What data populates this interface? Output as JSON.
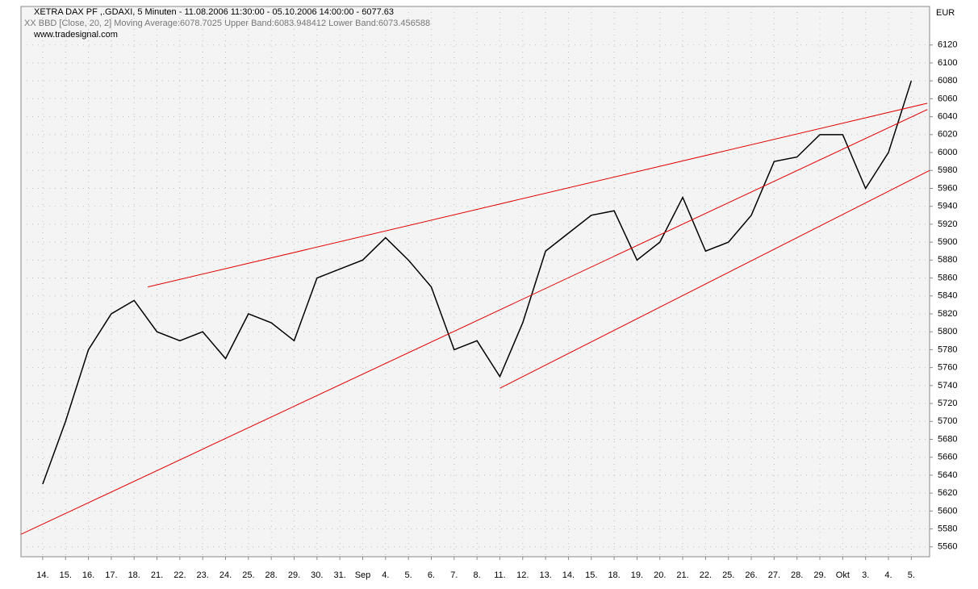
{
  "chart_data": {
    "type": "line",
    "title": "XETRA DAX PF ,.GDAXI, 5 Minuten - 11.08.2006 11:30:00 - 05.10.2006 14:00:00 - 6077.63",
    "subtitle": "XX BBD [Close, 20, 2] Moving Average:6078.7025 Upper Band:6083.948412 Lower Band:6073.456588",
    "source": "www.tradesignal.com",
    "y_axis_label": "EUR",
    "categories": [
      "14.",
      "15.",
      "16.",
      "17.",
      "18.",
      "21.",
      "22.",
      "23.",
      "24.",
      "25.",
      "28.",
      "29.",
      "30.",
      "31.",
      "Sep",
      "4.",
      "5.",
      "6.",
      "7.",
      "8.",
      "11.",
      "12.",
      "13.",
      "14.",
      "15.",
      "18.",
      "19.",
      "20.",
      "21.",
      "22.",
      "25.",
      "26.",
      "27.",
      "28.",
      "29.",
      "Okt",
      "3.",
      "4.",
      "5."
    ],
    "series": [
      {
        "name": "XETRA DAX PF",
        "color": "#000000",
        "values": [
          5630,
          5700,
          5780,
          5820,
          5835,
          5800,
          5790,
          5800,
          5770,
          5820,
          5810,
          5790,
          5860,
          5870,
          5880,
          5905,
          5880,
          5850,
          5780,
          5790,
          5750,
          5810,
          5890,
          5910,
          5930,
          5935,
          5880,
          5900,
          5950,
          5890,
          5900,
          5930,
          5990,
          5995,
          6020,
          6020,
          5960,
          6000,
          6080
        ]
      }
    ],
    "trendlines": [
      {
        "color": "#e00000",
        "x": [
          4.6,
          38.7
        ],
        "y": [
          5850,
          6055
        ]
      },
      {
        "color": "#e00000",
        "x": [
          -0.95,
          38.7
        ],
        "y": [
          5574,
          6048
        ]
      },
      {
        "color": "#e00000",
        "x": [
          20.0,
          38.8
        ],
        "y": [
          5737,
          5980
        ]
      }
    ],
    "xlim": [
      -0.95,
      38.8
    ],
    "ylim": [
      5549,
      6163
    ],
    "yticks": [
      5560,
      5580,
      5600,
      5620,
      5640,
      5660,
      5680,
      5700,
      5720,
      5740,
      5760,
      5780,
      5800,
      5820,
      5840,
      5860,
      5880,
      5900,
      5920,
      5940,
      5960,
      5980,
      6000,
      6020,
      6040,
      6060,
      6080,
      6100,
      6120
    ],
    "grid": true
  }
}
